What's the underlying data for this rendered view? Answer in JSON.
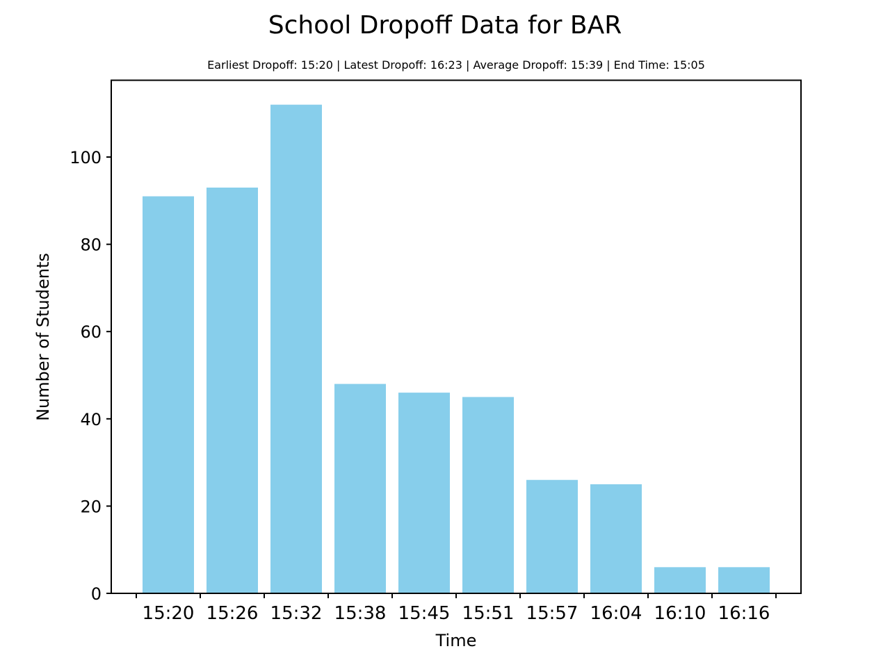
{
  "chart_data": {
    "type": "bar",
    "title": "School Dropoff Data for BAR",
    "subtitle": "Earliest Dropoff: 15:20 | Latest Dropoff: 16:23 | Average Dropoff: 15:39 | End Time: 15:05",
    "xlabel": "Time",
    "ylabel": "Number of Students",
    "categories": [
      "15:20",
      "15:26",
      "15:32",
      "15:38",
      "15:45",
      "15:51",
      "15:57",
      "16:04",
      "16:10",
      "16:16"
    ],
    "values": [
      91,
      93,
      112,
      48,
      46,
      45,
      26,
      25,
      6,
      6
    ],
    "y_ticks": [
      0,
      20,
      40,
      60,
      80,
      100
    ],
    "ylim": [
      0,
      117.6
    ],
    "grid": false,
    "bar_color": "#87CEEB"
  }
}
